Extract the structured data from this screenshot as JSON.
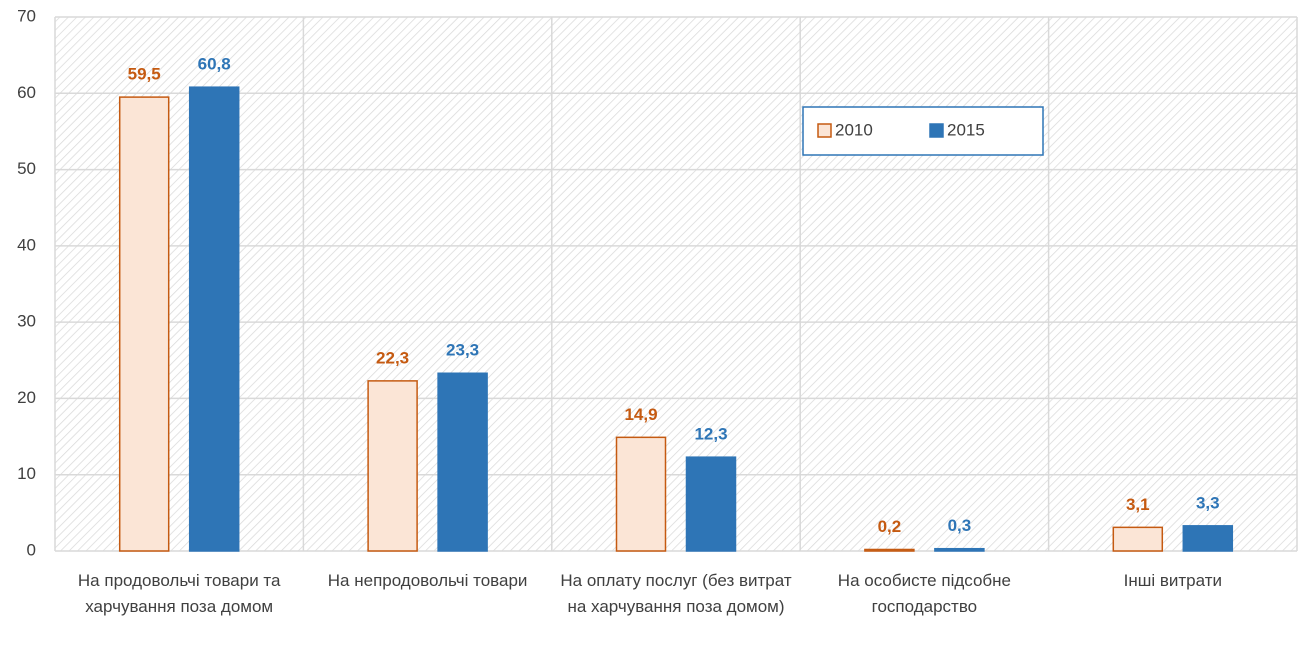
{
  "chart_data": {
    "type": "bar",
    "categories": [
      "На продовольчі товари та харчування поза домом",
      "На непродовольчі товари",
      "На оплату послуг (без витрат на харчування поза домом)",
      "На особисте підсобне господарство",
      "Інші витрати"
    ],
    "series": [
      {
        "name": "2010",
        "color": "#fbe5d6",
        "edge": "#c55a11",
        "values": [
          59.5,
          22.3,
          14.9,
          0.2,
          3.1
        ],
        "value_labels": [
          "59,5",
          "22,3",
          "14,9",
          "0,2",
          "3,1"
        ]
      },
      {
        "name": "2015",
        "color": "#2e75b6",
        "edge": "#2e75b6",
        "values": [
          60.8,
          23.3,
          12.3,
          0.3,
          3.3
        ],
        "value_labels": [
          "60,8",
          "23,3",
          "12,3",
          "0,3",
          "3,3"
        ]
      }
    ],
    "ylim": [
      0,
      70
    ],
    "yticks": [
      0,
      10,
      20,
      30,
      40,
      50,
      60,
      70
    ],
    "grid": true
  }
}
